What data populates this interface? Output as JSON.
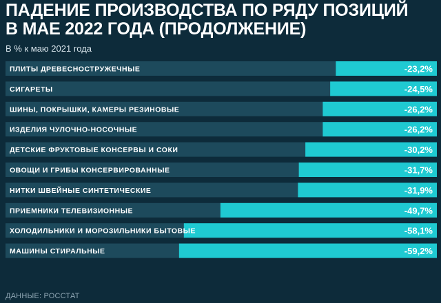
{
  "header": {
    "title_line1": "ПАДЕНИЕ ПРОИЗВОДСТВА ПО РЯДУ ПОЗИЦИЙ",
    "title_line2": "В МАЕ 2022 ГОДА (ПРОДОЛЖЕНИЕ)",
    "subtitle": "В % к маю 2021 года"
  },
  "footer": {
    "source": "ДАННЫЕ: РОССТАТ"
  },
  "colors": {
    "background": "#0d2b3a",
    "track": "#1d4a5c",
    "bar": "#1fcad2",
    "text": "#ffffff"
  },
  "chart_data": {
    "type": "bar",
    "orientation": "horizontal",
    "categories": [
      "ПЛИТЫ ДРЕВЕСНОСТРУЖЕЧНЫЕ",
      "СИГАРЕТЫ",
      "ШИНЫ, ПОКРЫШКИ, КАМЕРЫ РЕЗИНОВЫЕ",
      "ИЗДЕЛИЯ ЧУЛОЧНО-НОСОЧНЫЕ",
      "ДЕТСКИЕ ФРУКТОВЫЕ КОНСЕРВЫ И СОКИ",
      "ОВОЩИ И ГРИБЫ КОНСЕРВИРОВАННЫЕ",
      "НИТКИ ШВЕЙНЫЕ СИНТЕТИЧЕСКИЕ",
      "ПРИЕМНИКИ ТЕЛЕВИЗИОННЫЕ",
      "ХОЛОДИЛЬНИКИ И МОРОЗИЛЬНИКИ БЫТОВЫЕ",
      "МАШИНЫ СТИРАЛЬНЫЕ"
    ],
    "values": [
      -23.2,
      -24.5,
      -26.2,
      -26.2,
      -30.2,
      -31.7,
      -31.9,
      -49.7,
      -58.1,
      -59.2
    ],
    "value_labels": [
      "-23,2%",
      "-24,5%",
      "-26,2%",
      "-26,2%",
      "-30,2%",
      "-31,7%",
      "-31,9%",
      "-49,7%",
      "-58,1%",
      "-59,2%"
    ],
    "title": "ПАДЕНИЕ ПРОИЗВОДСТВА ПО РЯДУ ПОЗИЦИЙ В МАЕ 2022 ГОДА (ПРОДОЛЖЕНИЕ)",
    "subtitle": "В % к маю 2021 года",
    "bars_grow_from": "right",
    "grid": false,
    "legend": "none"
  }
}
